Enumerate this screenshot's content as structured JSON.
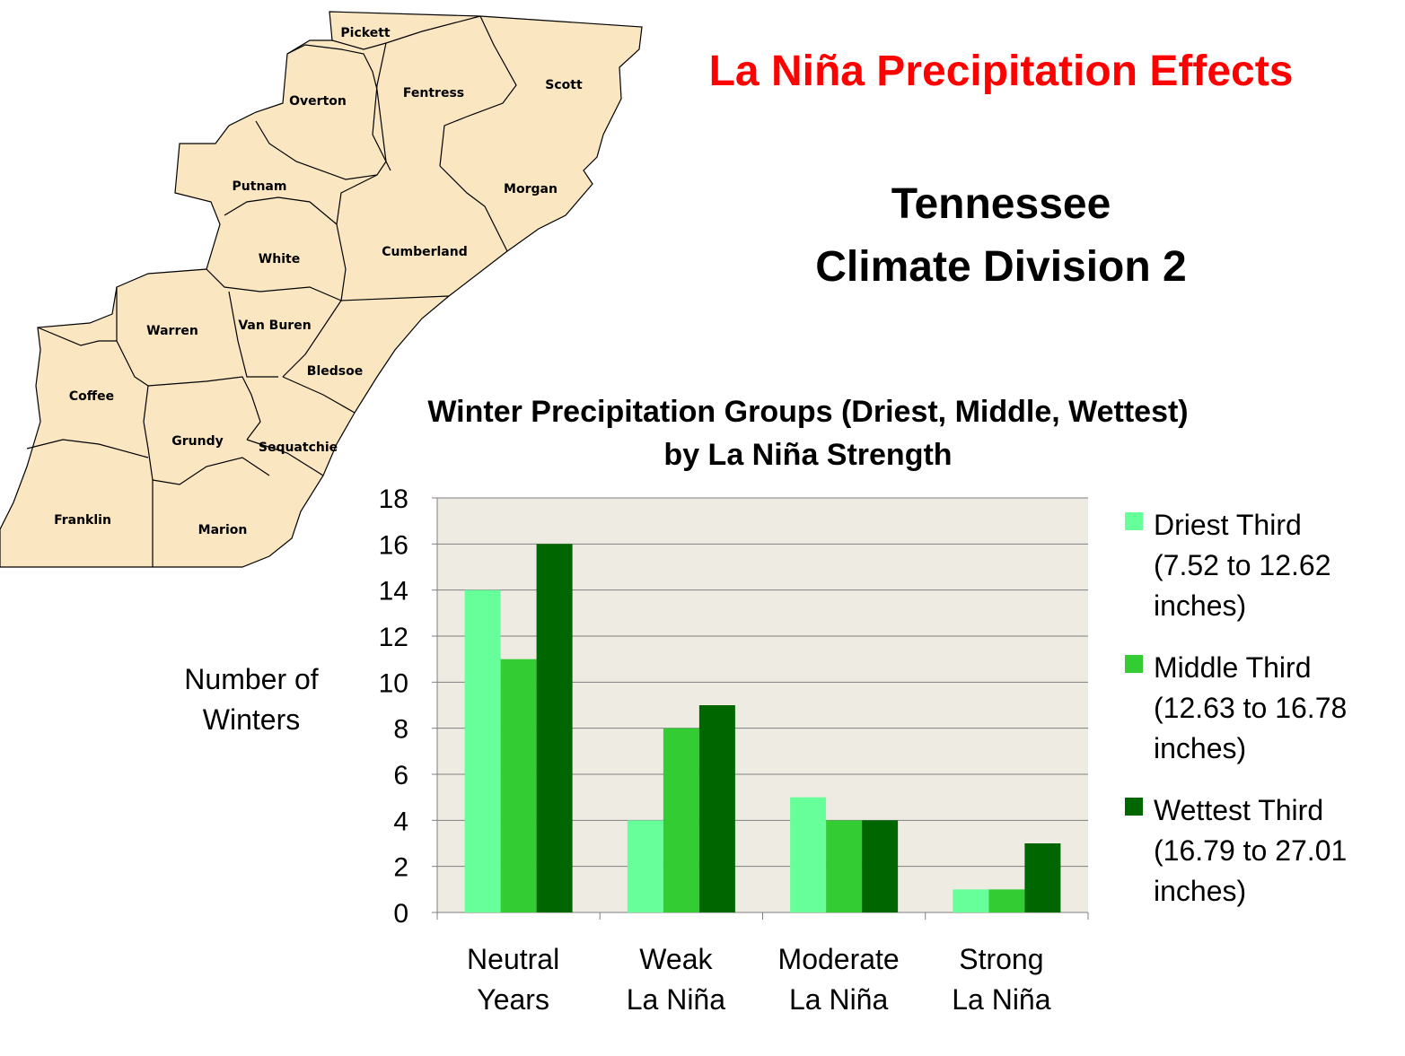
{
  "slide": {
    "title": "La Niña Precipitation Effects",
    "subtitle_line1": "Tennessee",
    "subtitle_line2": "Climate Division 2"
  },
  "map": {
    "fill_color": "#fae6c0",
    "counties": [
      "Pickett",
      "Scott",
      "Overton",
      "Fentress",
      "Putnam",
      "Morgan",
      "White",
      "Cumberland",
      "Warren",
      "Van Buren",
      "Bledsoe",
      "Coffee",
      "Grundy",
      "Sequatchie",
      "Franklin",
      "Marion"
    ]
  },
  "chart_data": {
    "type": "bar",
    "title_line1": "Winter Precipitation Groups (Driest, Middle, Wettest)",
    "title_line2": "by La Niña Strength",
    "ylabel_line1": "Number of",
    "ylabel_line2": "Winters",
    "ylim": [
      0,
      18
    ],
    "yticks": [
      0,
      2,
      4,
      6,
      8,
      10,
      12,
      14,
      16,
      18
    ],
    "grid": true,
    "plot_background": "#eeebe2",
    "legend_position": "right",
    "categories": [
      {
        "line1": "Neutral",
        "line2": "Years"
      },
      {
        "line1": "Weak",
        "line2": "La Niña"
      },
      {
        "line1": "Moderate",
        "line2": "La Niña"
      },
      {
        "line1": "Strong",
        "line2": "La Niña"
      }
    ],
    "series": [
      {
        "name_line1": "Driest Third",
        "name_line2": "(7.52 to 12.62",
        "name_line3": "inches)",
        "color": "#66ff99",
        "values": [
          14,
          4,
          5,
          1
        ]
      },
      {
        "name_line1": "Middle Third",
        "name_line2": "(12.63 to 16.78",
        "name_line3": "inches)",
        "color": "#33cc33",
        "values": [
          11,
          8,
          4,
          1
        ]
      },
      {
        "name_line1": "Wettest Third",
        "name_line2": "(16.79 to 27.01",
        "name_line3": "inches)",
        "color": "#006600",
        "values": [
          16,
          9,
          4,
          3
        ]
      }
    ]
  }
}
